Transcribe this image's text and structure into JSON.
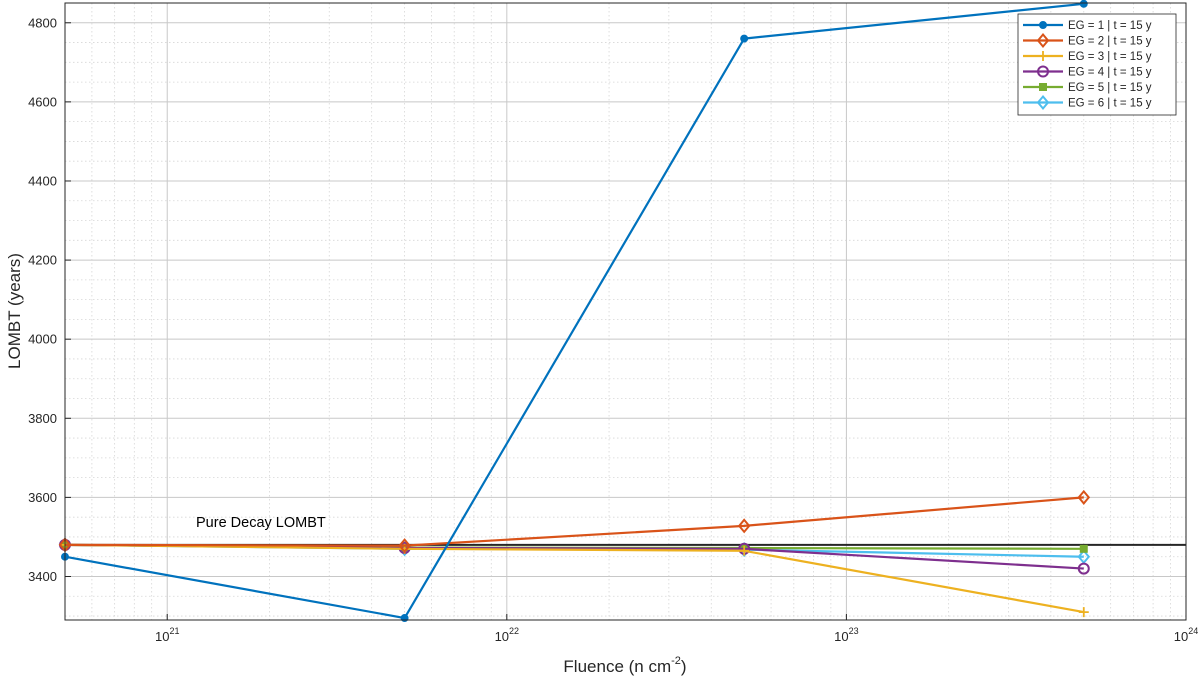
{
  "chart_data": {
    "type": "line",
    "xlabel": "Fluence (n cm",
    "xlabel_sup": "-2",
    "xlabel_suffix": ")",
    "ylabel": "LOMBT (years)",
    "xscale": "log",
    "xlim": [
      5e+20,
      1e+24
    ],
    "ylim": [
      3290,
      4850
    ],
    "x_ticks": [
      {
        "value": 1e+21,
        "base": "10",
        "exp": "21"
      },
      {
        "value": 1e+22,
        "base": "10",
        "exp": "22"
      },
      {
        "value": 1e+23,
        "base": "10",
        "exp": "23"
      },
      {
        "value": 1e+24,
        "base": "10",
        "exp": "24"
      }
    ],
    "y_ticks": [
      3400,
      3600,
      3800,
      4000,
      4200,
      4400,
      4600,
      4800
    ],
    "grid": true,
    "minor_grid": true,
    "legend_position": "top-right",
    "x": [
      5e+20,
      5e+21,
      5e+22,
      5e+23
    ],
    "series": [
      {
        "name": "EG = 1 | t = 15 y",
        "color": "#0072BD",
        "marker": "dot",
        "values": [
          3450,
          3295,
          4760,
          4848
        ]
      },
      {
        "name": "EG = 2 | t = 15 y",
        "color": "#D95319",
        "marker": "diamond",
        "values": [
          3480,
          3478,
          3528,
          3600
        ]
      },
      {
        "name": "EG = 3 | t = 15 y",
        "color": "#EDB120",
        "marker": "plus",
        "values": [
          3480,
          3470,
          3465,
          3310
        ]
      },
      {
        "name": "EG = 4 | t = 15 y",
        "color": "#7E2F8E",
        "marker": "circle",
        "values": [
          3480,
          3472,
          3470,
          3420
        ]
      },
      {
        "name": "EG = 5 | t = 15 y",
        "color": "#77AC30",
        "marker": "square",
        "values": [
          3480,
          3473,
          3472,
          3470
        ]
      },
      {
        "name": "EG = 6 | t = 15 y",
        "color": "#4DBEEE",
        "marker": "diamond",
        "values": [
          3480,
          3470,
          3468,
          3450
        ]
      }
    ],
    "reference_line": {
      "label": "Pure Decay LOMBT",
      "value": 3480,
      "color": "#262626"
    }
  }
}
